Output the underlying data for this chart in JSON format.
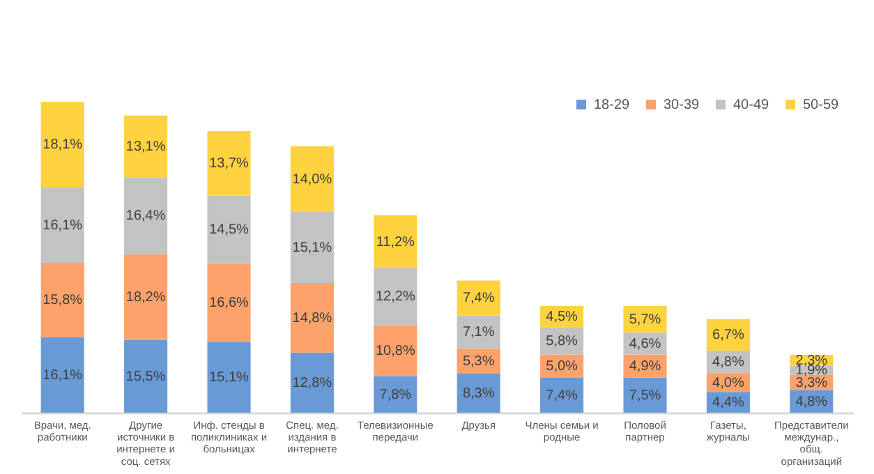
{
  "chart_data": {
    "type": "bar",
    "stacked": true,
    "legend": "top right",
    "tick_labels": "x",
    "categories": [
      "Врачи, мед. работники",
      "Другие источники в интернете и соц. сетях",
      "Инф. стенды в поликлиниках и больницах",
      "Спец. мед. издания в интернете",
      "Телевизионные передачи",
      "Друзья",
      "Члены семьи и родные",
      "Половой партнер",
      "Газеты, журналы",
      "Представители междунар., общ. организаций"
    ],
    "series": [
      {
        "name": "18-29",
        "color": "#6a9ad6",
        "values": [
          16.1,
          15.5,
          15.1,
          12.8,
          7.8,
          8.3,
          7.4,
          7.5,
          4.4,
          4.8
        ],
        "value_labels": [
          "16,1%",
          "15,5%",
          "15,1%",
          "12,8%",
          "7,8%",
          "8,3%",
          "7,4%",
          "7,5%",
          "4,4%",
          "4,8%"
        ]
      },
      {
        "name": "30-39",
        "color": "#fca26a",
        "values": [
          15.8,
          18.2,
          16.6,
          14.8,
          10.8,
          5.3,
          5.0,
          4.9,
          4.0,
          3.3
        ],
        "value_labels": [
          "15,8%",
          "18,2%",
          "16,6%",
          "14,8%",
          "10,8%",
          "5,3%",
          "5,0%",
          "4,9%",
          "4,0%",
          "3,3%"
        ]
      },
      {
        "name": "40-49",
        "color": "#c3c3c3",
        "values": [
          16.1,
          16.4,
          14.5,
          15.1,
          12.2,
          7.1,
          5.8,
          4.6,
          4.8,
          1.9
        ],
        "value_labels": [
          "16,1%",
          "16,4%",
          "14,5%",
          "15,1%",
          "12,2%",
          "7,1%",
          "5,8%",
          "4,6%",
          "4,8%",
          "1,9%"
        ]
      },
      {
        "name": "50-59",
        "color": "#ffd23f",
        "values": [
          18.1,
          13.1,
          13.7,
          14.0,
          11.2,
          7.4,
          4.5,
          5.7,
          6.7,
          2.3
        ],
        "value_labels": [
          "18,1%",
          "13,1%",
          "13,7%",
          "14,0%",
          "11,2%",
          "7,4%",
          "4,5%",
          "5,7%",
          "6,7%",
          "2,3%"
        ]
      }
    ]
  }
}
